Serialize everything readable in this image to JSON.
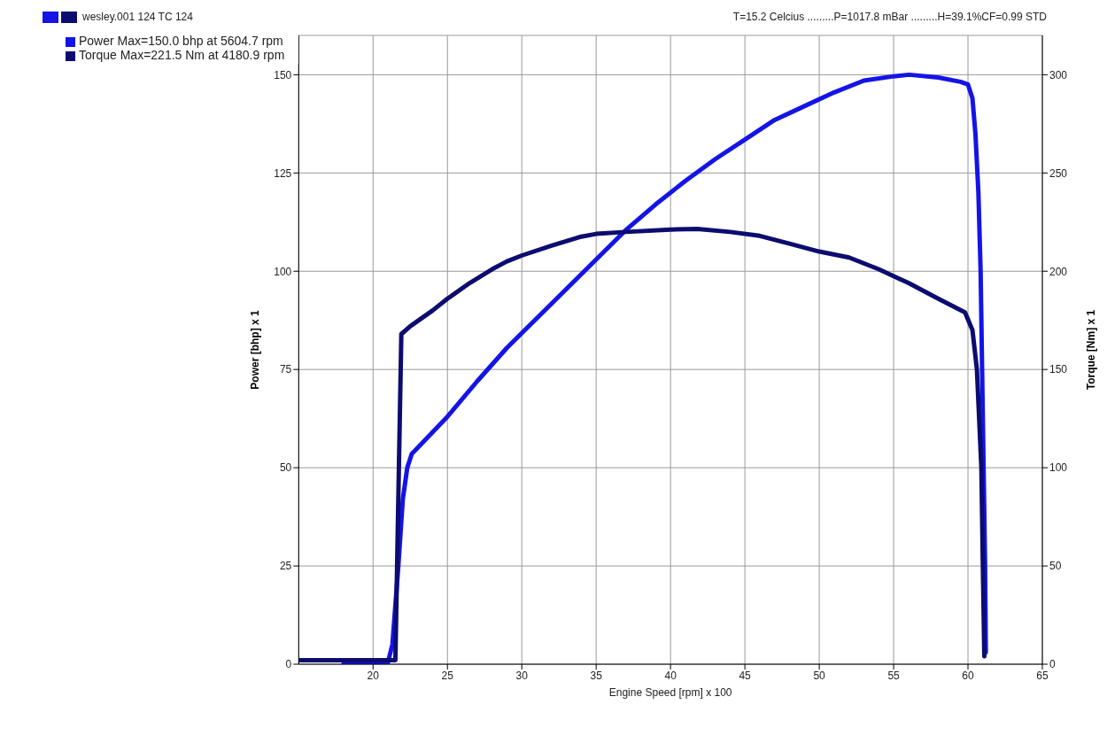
{
  "chart_data": {
    "type": "line",
    "subtitle": "wesley.001 124 TC  124",
    "annotations": [
      "T=15.2 Celcius .........P=1017.8 mBar .........H=39.1%CF=0.99 STD"
    ],
    "xlabel": "Engine Speed [rpm] x 100",
    "ylabel": "Power [bhp] x 1",
    "y2label": "Torque [Nm] x 1",
    "xlim": [
      15,
      65
    ],
    "xticks": [
      20,
      25,
      30,
      35,
      40,
      45,
      50,
      55,
      60,
      65
    ],
    "ylim": [
      0,
      160
    ],
    "yticks": [
      0,
      25,
      50,
      75,
      100,
      125,
      150
    ],
    "y2lim": [
      0,
      320
    ],
    "y2ticks": [
      0,
      50,
      100,
      150,
      200,
      250,
      300
    ],
    "grid": true,
    "legend": "top left",
    "marker": "none",
    "line_style": "solid",
    "series": [
      {
        "name": "Power  Max=150.0 bhp at 5604.7 rpm",
        "color": "#1414e6",
        "x": [
          18,
          21,
          21.3,
          21.7,
          22,
          22.3,
          22.6,
          25,
          27,
          29,
          31,
          33,
          35,
          37,
          39,
          41,
          43,
          45,
          47,
          49,
          51,
          53,
          55,
          56.05,
          58,
          59.5,
          60,
          60.3,
          60.5,
          60.7,
          60.85,
          60.95,
          61.05,
          61.15,
          61.2
        ],
        "values": [
          0,
          0.5,
          5,
          25,
          42,
          50,
          53.5,
          63,
          72,
          80.5,
          88,
          95.5,
          103,
          110.5,
          117,
          123,
          128.5,
          133.5,
          138.5,
          142,
          145.5,
          148.5,
          149.6,
          150,
          149.3,
          148.2,
          147.5,
          144,
          135,
          120,
          100,
          75,
          50,
          25,
          3
        ]
      },
      {
        "name": "Torque  Max=221.5 Nm at 4180.9 rpm",
        "color": "#0c0c70",
        "axis": "y2",
        "x": [
          15,
          21.5,
          21.9,
          22.5,
          24,
          25,
          26.5,
          28,
          29,
          30,
          32,
          34,
          35,
          37,
          40,
          41.8,
          44,
          46,
          48,
          50,
          52,
          54,
          56,
          58,
          59.8,
          60.3,
          60.6,
          60.9,
          61,
          61.1
        ],
        "values": [
          2,
          2,
          168,
          172,
          180,
          186,
          194,
          201,
          205,
          208,
          213,
          217.6,
          219,
          220,
          221.2,
          221.5,
          220,
          218,
          214,
          210,
          207,
          201,
          194,
          186,
          179,
          170,
          150,
          100,
          50,
          4
        ]
      }
    ]
  }
}
